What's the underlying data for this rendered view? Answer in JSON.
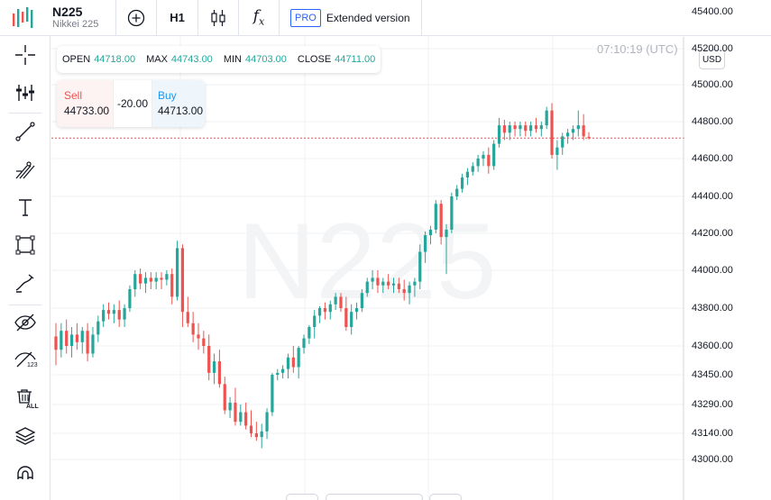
{
  "header": {
    "symbol": "N225",
    "symbol_name": "Nikkei 225",
    "timeframe": "H1",
    "fx_label": "f",
    "fx_sub": "x",
    "pro_badge": "PRO",
    "extended_label": "Extended version",
    "icons": [
      "logo-bars-icon",
      "add-circle-icon",
      "candlestick-icon",
      "function-icon"
    ]
  },
  "left_toolbar": {
    "tools": [
      {
        "name": "crosshair-icon"
      },
      {
        "name": "indicators-icon"
      },
      {
        "name": "trend-line-icon"
      },
      {
        "name": "fibonacci-icon"
      },
      {
        "name": "text-icon"
      },
      {
        "name": "rectangle-icon"
      },
      {
        "name": "brush-icon"
      },
      {
        "name": "hide-drawings-icon"
      },
      {
        "name": "hide-indicators-icon",
        "badge": "123"
      },
      {
        "name": "delete-all-icon",
        "badge": "ALL"
      },
      {
        "name": "layers-icon"
      },
      {
        "name": "magnet-icon"
      }
    ]
  },
  "legend": {
    "open_label": "OPEN",
    "open": "44718.00",
    "max_label": "MAX",
    "max": "44743.00",
    "min_label": "MIN",
    "min": "44703.00",
    "close_label": "CLOSE",
    "close": "44711.00"
  },
  "trade": {
    "sell_label": "Sell",
    "sell_price": "44733.00",
    "spread": "-20.00",
    "buy_label": "Buy",
    "buy_price": "44713.00"
  },
  "time_label": "07:10:19 (UTC)",
  "currency": "USD",
  "watermark": "N225",
  "colors": {
    "up": "#26a69a",
    "down": "#ef5350",
    "price_line": "#ef5350",
    "accent": "#2962ff"
  },
  "price_axis": {
    "labels": [
      "45400.00",
      "45200.00",
      "45000.00",
      "44800.00",
      "44600.00",
      "44400.00",
      "44200.00",
      "44000.00",
      "43800.00",
      "43600.00",
      "43450.00",
      "43290.00",
      "43140.00",
      "43000.00"
    ]
  },
  "chart_data": {
    "type": "candlestick",
    "timeframe": "H1",
    "ylim": [
      43000,
      45400
    ],
    "current_price": 44711,
    "candles": [
      [
        43650,
        43720,
        43500,
        43580
      ],
      [
        43580,
        43720,
        43540,
        43680
      ],
      [
        43680,
        43740,
        43560,
        43600
      ],
      [
        43600,
        43700,
        43540,
        43660
      ],
      [
        43660,
        43720,
        43580,
        43620
      ],
      [
        43620,
        43700,
        43560,
        43680
      ],
      [
        43680,
        43720,
        43520,
        43560
      ],
      [
        43560,
        43700,
        43540,
        43660
      ],
      [
        43660,
        43760,
        43620,
        43730
      ],
      [
        43730,
        43820,
        43700,
        43790
      ],
      [
        43790,
        43830,
        43740,
        43770
      ],
      [
        43770,
        43820,
        43720,
        43790
      ],
      [
        43790,
        43840,
        43700,
        43740
      ],
      [
        43740,
        43820,
        43700,
        43800
      ],
      [
        43800,
        43920,
        43780,
        43900
      ],
      [
        43900,
        44000,
        43860,
        43980
      ],
      [
        43980,
        44010,
        43900,
        43930
      ],
      [
        43930,
        43990,
        43880,
        43960
      ],
      [
        43960,
        43990,
        43900,
        43940
      ],
      [
        43940,
        43990,
        43900,
        43960
      ],
      [
        43960,
        43990,
        43900,
        43950
      ],
      [
        43950,
        44000,
        43920,
        43980
      ],
      [
        43980,
        44010,
        43820,
        43860
      ],
      [
        43860,
        44160,
        43840,
        44120
      ],
      [
        44120,
        44140,
        43700,
        43780
      ],
      [
        43780,
        43860,
        43700,
        43720
      ],
      [
        43720,
        43780,
        43620,
        43660
      ],
      [
        43660,
        43720,
        43580,
        43640
      ],
      [
        43640,
        43680,
        43560,
        43600
      ],
      [
        43600,
        43660,
        43420,
        43460
      ],
      [
        43460,
        43560,
        43400,
        43520
      ],
      [
        43520,
        43580,
        43380,
        43400
      ],
      [
        43400,
        43440,
        43240,
        43260
      ],
      [
        43260,
        43330,
        43220,
        43300
      ],
      [
        43300,
        43380,
        43180,
        43200
      ],
      [
        43200,
        43290,
        43180,
        43250
      ],
      [
        43250,
        43300,
        43160,
        43180
      ],
      [
        43180,
        43260,
        43120,
        43140
      ],
      [
        43140,
        43200,
        43100,
        43120
      ],
      [
        43120,
        43190,
        43060,
        43150
      ],
      [
        43150,
        43270,
        43110,
        43250
      ],
      [
        43250,
        43460,
        43230,
        43450
      ],
      [
        43450,
        43480,
        43420,
        43460
      ],
      [
        43460,
        43500,
        43430,
        43480
      ],
      [
        43480,
        43560,
        43430,
        43540
      ],
      [
        43540,
        43600,
        43460,
        43490
      ],
      [
        43490,
        43600,
        43430,
        43590
      ],
      [
        43590,
        43660,
        43560,
        43640
      ],
      [
        43640,
        43710,
        43610,
        43700
      ],
      [
        43700,
        43790,
        43640,
        43760
      ],
      [
        43760,
        43810,
        43720,
        43800
      ],
      [
        43800,
        43830,
        43740,
        43780
      ],
      [
        43780,
        43840,
        43740,
        43820
      ],
      [
        43820,
        43880,
        43790,
        43860
      ],
      [
        43860,
        43880,
        43780,
        43800
      ],
      [
        43800,
        43860,
        43680,
        43700
      ],
      [
        43700,
        43820,
        43660,
        43780
      ],
      [
        43780,
        43830,
        43740,
        43800
      ],
      [
        43800,
        43900,
        43780,
        43880
      ],
      [
        43880,
        43960,
        43860,
        43940
      ],
      [
        43940,
        44000,
        43900,
        43960
      ],
      [
        43960,
        44000,
        43880,
        43920
      ],
      [
        43920,
        43960,
        43880,
        43940
      ],
      [
        43940,
        43980,
        43900,
        43920
      ],
      [
        43920,
        43960,
        43880,
        43930
      ],
      [
        43930,
        43960,
        43880,
        43900
      ],
      [
        43900,
        43950,
        43840,
        43880
      ],
      [
        43880,
        43940,
        43820,
        43920
      ],
      [
        43920,
        43960,
        43860,
        43940
      ],
      [
        43940,
        44140,
        43900,
        44100
      ],
      [
        44100,
        44210,
        44040,
        44190
      ],
      [
        44190,
        44240,
        44140,
        44220
      ],
      [
        44220,
        44380,
        44200,
        44360
      ],
      [
        44360,
        44380,
        44140,
        44180
      ],
      [
        44180,
        44250,
        43980,
        44220
      ],
      [
        44220,
        44420,
        44200,
        44400
      ],
      [
        44400,
        44460,
        44380,
        44440
      ],
      [
        44440,
        44520,
        44420,
        44500
      ],
      [
        44500,
        44550,
        44460,
        44530
      ],
      [
        44530,
        44580,
        44510,
        44560
      ],
      [
        44560,
        44620,
        44530,
        44600
      ],
      [
        44600,
        44640,
        44560,
        44620
      ],
      [
        44620,
        44660,
        44520,
        44560
      ],
      [
        44560,
        44700,
        44540,
        44680
      ],
      [
        44680,
        44820,
        44660,
        44780
      ],
      [
        44780,
        44810,
        44700,
        44740
      ],
      [
        44740,
        44800,
        44700,
        44780
      ],
      [
        44780,
        44800,
        44720,
        44760
      ],
      [
        44760,
        44800,
        44720,
        44780
      ],
      [
        44780,
        44800,
        44720,
        44750
      ],
      [
        44750,
        44800,
        44720,
        44780
      ],
      [
        44780,
        44820,
        44740,
        44760
      ],
      [
        44760,
        44800,
        44720,
        44780
      ],
      [
        44780,
        44880,
        44760,
        44860
      ],
      [
        44860,
        44900,
        44600,
        44620
      ],
      [
        44620,
        44700,
        44540,
        44660
      ],
      [
        44660,
        44740,
        44620,
        44720
      ],
      [
        44720,
        44760,
        44680,
        44740
      ],
      [
        44740,
        44780,
        44700,
        44760
      ],
      [
        44760,
        44860,
        44720,
        44780
      ],
      [
        44780,
        44840,
        44700,
        44720
      ],
      [
        44718,
        44743,
        44703,
        44711
      ]
    ]
  }
}
